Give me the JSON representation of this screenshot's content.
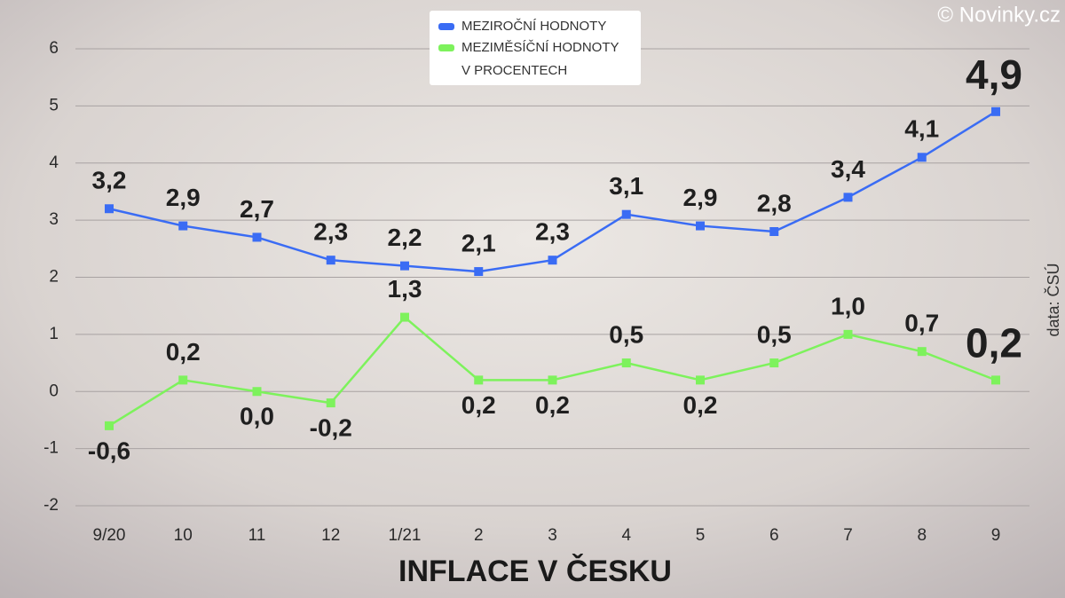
{
  "chart_data": {
    "type": "line",
    "title": "INFLACE V ČESKU",
    "credit": "© Novinky.cz",
    "source": "data: ČSÚ",
    "unit_note": "V PROCENTECH",
    "categories": [
      "9/20",
      "10",
      "11",
      "12",
      "1/21",
      "2",
      "3",
      "4",
      "5",
      "6",
      "7",
      "8",
      "9"
    ],
    "series": [
      {
        "name": "MEZIROČNÍ HODNOTY",
        "color": "#3a6cf4",
        "values": [
          3.2,
          2.9,
          2.7,
          2.3,
          2.2,
          2.1,
          2.3,
          3.1,
          2.9,
          2.8,
          3.4,
          4.1,
          4.9
        ],
        "value_labels": [
          "3,2",
          "2,9",
          "2,7",
          "2,3",
          "2,2",
          "2,1",
          "2,3",
          "3,1",
          "2,9",
          "2,8",
          "3,4",
          "4,1",
          "4,9"
        ]
      },
      {
        "name": "MEZIMĚSÍČNÍ HODNOTY",
        "color": "#7df25c",
        "values": [
          -0.6,
          0.2,
          0.0,
          -0.2,
          1.3,
          0.2,
          0.2,
          0.5,
          0.2,
          0.5,
          1.0,
          0.7,
          0.2
        ],
        "value_labels": [
          "-0,6",
          "0,2",
          "0,0",
          "-0,2",
          "1,3",
          "0,2",
          "0,2",
          "0,5",
          "0,2",
          "0,5",
          "1,0",
          "0,7",
          "0,2"
        ]
      }
    ],
    "ylim": [
      -2,
      6
    ],
    "yticks": [
      -2,
      -1,
      0,
      1,
      2,
      3,
      4,
      5,
      6
    ],
    "grid": true
  }
}
